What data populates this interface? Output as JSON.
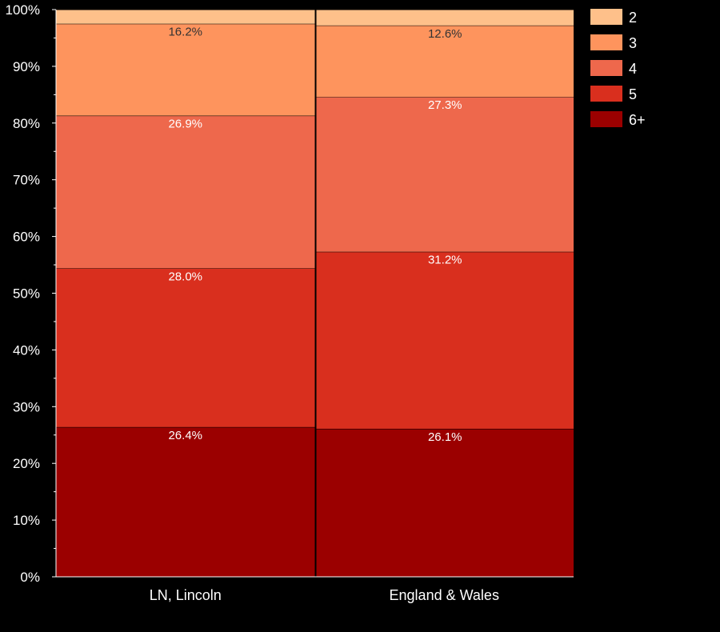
{
  "chart_data": {
    "type": "bar",
    "stacked": true,
    "percent": true,
    "categories": [
      "LN, Lincoln",
      "England & Wales"
    ],
    "series": [
      {
        "name": "6+",
        "color": "#9b0000",
        "values": [
          26.4,
          26.1
        ],
        "labels": [
          "26.4%",
          "26.1%"
        ]
      },
      {
        "name": "5",
        "color": "#d92f1e",
        "values": [
          28.0,
          31.2
        ],
        "labels": [
          "28.0%",
          "31.2%"
        ]
      },
      {
        "name": "4",
        "color": "#ee684c",
        "values": [
          26.9,
          27.3
        ],
        "labels": [
          "26.9%",
          "27.3%"
        ]
      },
      {
        "name": "3",
        "color": "#fe945d",
        "values": [
          16.2,
          12.6
        ],
        "labels": [
          "16.2%",
          "12.6%"
        ]
      },
      {
        "name": "2",
        "color": "#fec08a",
        "values": [
          2.5,
          2.8
        ],
        "labels": [
          "",
          ""
        ]
      }
    ],
    "legend_order": [
      "2",
      "3",
      "4",
      "5",
      "6+"
    ],
    "y_ticks": [
      "0%",
      "10%",
      "20%",
      "30%",
      "40%",
      "50%",
      "60%",
      "70%",
      "80%",
      "90%",
      "100%"
    ],
    "ylim": [
      0,
      100
    ],
    "legend_position": "top-right",
    "grid": false,
    "label_colors": {
      "light": "#ffffff",
      "dark": "#333333"
    }
  }
}
